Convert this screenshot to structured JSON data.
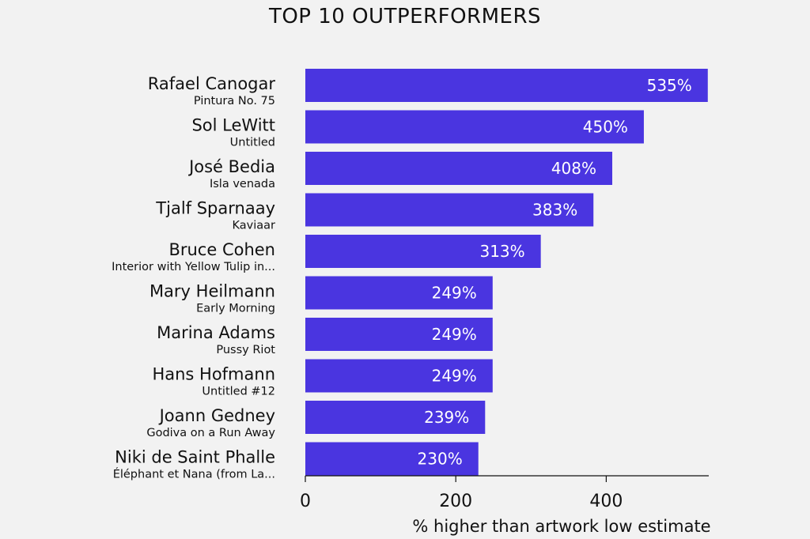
{
  "chart_data": {
    "type": "bar",
    "orientation": "horizontal",
    "title": "TOP 10 OUTPERFORMERS",
    "xlabel": "% higher than artwork low estimate",
    "ylabel": "",
    "xlim": [
      0,
      550
    ],
    "xticks": [
      0,
      200,
      400
    ],
    "grid": false,
    "bar_color": "#4a35e0",
    "value_suffix": "%",
    "categories": [
      {
        "artist": "Rafael Canogar",
        "artwork": "Pintura No. 75"
      },
      {
        "artist": "Sol LeWitt",
        "artwork": "Untitled"
      },
      {
        "artist": "José Bedia",
        "artwork": "Isla venada"
      },
      {
        "artist": "Tjalf Sparnaay",
        "artwork": "Kaviaar"
      },
      {
        "artist": "Bruce Cohen",
        "artwork": "Interior with Yellow Tulip in..."
      },
      {
        "artist": "Mary Heilmann",
        "artwork": "Early Morning"
      },
      {
        "artist": "Marina Adams",
        "artwork": "Pussy Riot"
      },
      {
        "artist": "Hans Hofmann",
        "artwork": "Untitled #12"
      },
      {
        "artist": "Joann Gedney",
        "artwork": "Godiva on a Run Away"
      },
      {
        "artist": "Niki de Saint Phalle",
        "artwork": "Éléphant et Nana (from La..."
      }
    ],
    "values": [
      535,
      450,
      408,
      383,
      313,
      249,
      249,
      249,
      239,
      230
    ]
  }
}
